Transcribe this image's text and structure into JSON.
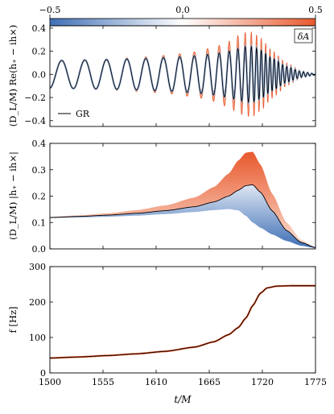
{
  "colorbar": {
    "label": "δA",
    "ticks": [
      "−0.5",
      "0.0",
      "0.5"
    ],
    "colors": {
      "negative": "#3f6fb5",
      "neutral": "#ffffff",
      "positive": "#e8582c"
    }
  },
  "chart_data": [
    {
      "type": "line",
      "panel": "strain-real",
      "ylabel": "(D_L/M) Re(h₊ − ih×)",
      "ylim": [
        -0.45,
        0.42
      ],
      "yticks": [
        "0.4",
        "0.2",
        "0.0",
        "−0.2",
        "−0.4"
      ],
      "ytick_values": [
        0.4,
        0.2,
        0.0,
        -0.2,
        -0.4
      ],
      "xlim": [
        1500,
        1775
      ],
      "legend": {
        "label": "GR",
        "position": "bottom-left"
      },
      "series": [
        {
          "name": "GR",
          "color": "#000000",
          "description_points": {
            "t": [
              1500,
              1550,
              1600,
              1650,
              1680,
              1700,
              1710,
              1720,
              1735,
              1775
            ],
            "amplitude": [
              0.11,
              0.12,
              0.13,
              0.15,
              0.18,
              0.23,
              0.24,
              0.18,
              0.06,
              0.0
            ]
          }
        }
      ],
      "band_amplitude_range": {
        "negative_dA": 0.11,
        "positive_dA": 0.37
      }
    },
    {
      "type": "area",
      "panel": "strain-abs",
      "ylabel": "(D_L/M) |h₊ − ih×|",
      "ylim": [
        0.0,
        0.4
      ],
      "yticks": [
        "0.4",
        "0.3",
        "0.2",
        "0.1",
        "0.0"
      ],
      "ytick_values": [
        0.4,
        0.3,
        0.2,
        0.1,
        0.0
      ],
      "xlim": [
        1500,
        1775
      ],
      "series": [
        {
          "name": "GR",
          "t": [
            1500,
            1530,
            1560,
            1590,
            1620,
            1650,
            1670,
            1685,
            1695,
            1703,
            1710,
            1718,
            1730,
            1745,
            1760,
            1775
          ],
          "values": [
            0.119,
            0.123,
            0.128,
            0.135,
            0.145,
            0.16,
            0.178,
            0.2,
            0.222,
            0.24,
            0.243,
            0.215,
            0.145,
            0.07,
            0.025,
            0.005
          ]
        },
        {
          "name": "upper",
          "t": [
            1500,
            1530,
            1560,
            1590,
            1620,
            1650,
            1670,
            1685,
            1695,
            1703,
            1710,
            1718,
            1730,
            1745,
            1760,
            1775
          ],
          "values": [
            0.121,
            0.127,
            0.135,
            0.147,
            0.165,
            0.195,
            0.235,
            0.285,
            0.335,
            0.365,
            0.368,
            0.32,
            0.21,
            0.1,
            0.035,
            0.006
          ]
        },
        {
          "name": "lower",
          "t": [
            1500,
            1530,
            1560,
            1590,
            1620,
            1650,
            1670,
            1685,
            1695,
            1703,
            1710,
            1718,
            1730,
            1745,
            1760,
            1775
          ],
          "values": [
            0.117,
            0.119,
            0.122,
            0.126,
            0.132,
            0.14,
            0.147,
            0.151,
            0.146,
            0.125,
            0.1,
            0.08,
            0.055,
            0.03,
            0.012,
            0.003
          ]
        }
      ]
    },
    {
      "type": "line",
      "panel": "frequency",
      "ylabel": "f [Hz]",
      "ylim": [
        0,
        300
      ],
      "yticks": [
        "300",
        "200",
        "100",
        "0"
      ],
      "ytick_values": [
        300,
        200,
        100,
        0
      ],
      "xlabel": "t/M",
      "xlim": [
        1500,
        1775
      ],
      "xticks": [
        "1500",
        "1555",
        "1610",
        "1665",
        "1720",
        "1775"
      ],
      "xtick_values": [
        1500,
        1555,
        1610,
        1665,
        1720,
        1775
      ],
      "series": [
        {
          "name": "GR",
          "t": [
            1500,
            1530,
            1560,
            1590,
            1620,
            1650,
            1670,
            1685,
            1695,
            1703,
            1710,
            1718,
            1725,
            1735,
            1750,
            1775
          ],
          "values": [
            42,
            45,
            49,
            54,
            61,
            73,
            88,
            108,
            128,
            155,
            190,
            225,
            240,
            245,
            246,
            246
          ]
        }
      ]
    }
  ]
}
